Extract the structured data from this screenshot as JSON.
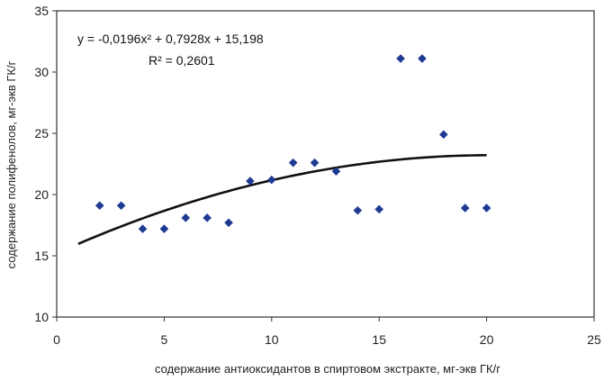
{
  "chart_data": {
    "type": "scatter",
    "title": "",
    "xlabel": "содержание антиоксидантов  в спиртовом экстракте, мг-экв ГК/г",
    "ylabel": "содержание полифенолов, мг-экв ГК/г",
    "xlim": [
      0,
      25
    ],
    "ylim": [
      10,
      35
    ],
    "xticks": [
      0,
      5,
      10,
      15,
      20,
      25
    ],
    "yticks": [
      10,
      15,
      20,
      25,
      30,
      35
    ],
    "grid": false,
    "series": [
      {
        "name": "points",
        "marker": "diamond",
        "color": "#1f3a93",
        "x": [
          2,
          3,
          4,
          5,
          6,
          7,
          8,
          9,
          10,
          11,
          12,
          13,
          14,
          15,
          16,
          17,
          18,
          19,
          20
        ],
        "y": [
          19.1,
          19.1,
          17.2,
          17.2,
          18.1,
          18.1,
          17.7,
          21.1,
          21.2,
          22.6,
          22.6,
          21.9,
          18.7,
          18.8,
          31.1,
          31.1,
          24.9,
          18.9,
          18.9
        ]
      }
    ],
    "trendline": {
      "type": "polynomial",
      "a": -0.0196,
      "b": 0.7928,
      "c": 15.198,
      "x_range": [
        1,
        20
      ],
      "color": "#111111",
      "equation": "y = -0,0196x² + 0,7928x + 15,198",
      "r2_label": "R² = 0,2601"
    }
  }
}
